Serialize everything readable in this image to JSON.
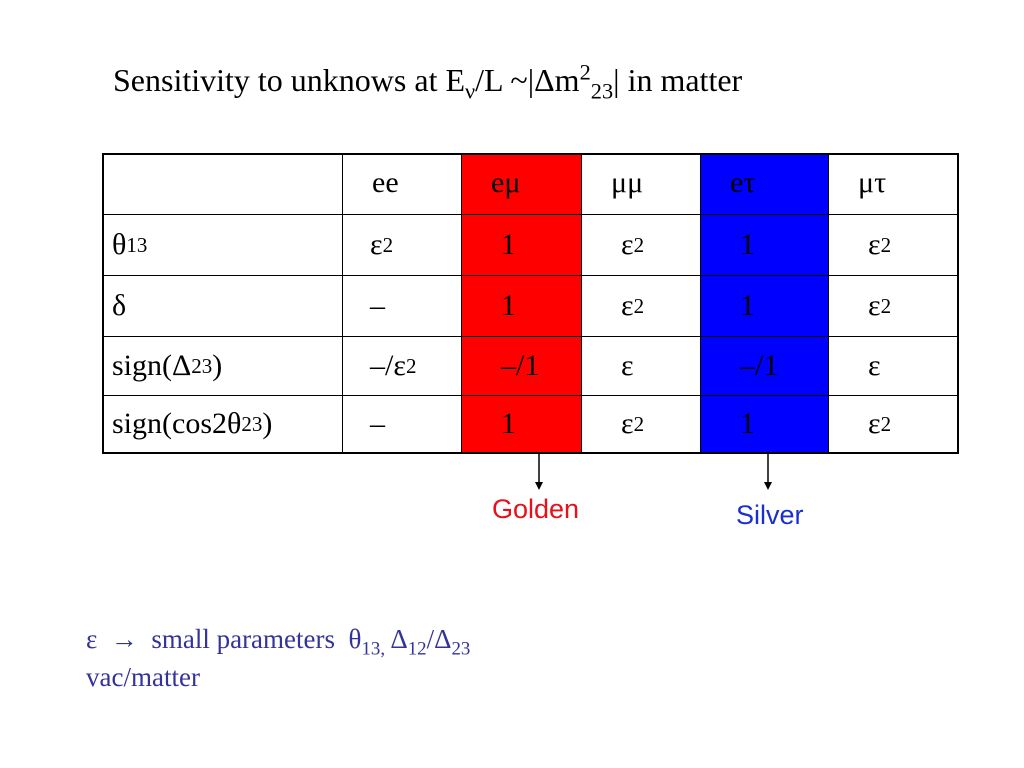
{
  "title": [
    "Sensitivity to unknows at E",
    {
      "sub": "ν"
    },
    "/L ~|Δm",
    {
      "sup": "2"
    },
    {
      "sub": "23"
    },
    "| in matter"
  ],
  "table": {
    "header": [
      {
        "label": "ee"
      },
      {
        "label": "eμ",
        "fill": "#ff0000"
      },
      {
        "label": "μμ"
      },
      {
        "label": "eτ",
        "fill": "#0000ff"
      },
      {
        "label": "μτ"
      }
    ],
    "rows": [
      [
        [
          "θ",
          {
            "sub": "13"
          }
        ],
        [
          "ε",
          {
            "sup": "2"
          }
        ],
        [
          "1"
        ],
        [
          "ε",
          {
            "sup": "2"
          }
        ],
        [
          "1"
        ],
        [
          "ε",
          {
            "sup": "2"
          }
        ]
      ],
      [
        [
          "δ"
        ],
        [
          "–"
        ],
        [
          "1"
        ],
        [
          "ε",
          {
            "sup": "2"
          }
        ],
        [
          "1"
        ],
        [
          "ε",
          {
            "sup": "2"
          }
        ]
      ],
      [
        [
          "sign(Δ",
          {
            "sub": "23"
          },
          ")"
        ],
        [
          "–/ε",
          {
            "sup": "2"
          }
        ],
        [
          "–/1"
        ],
        [
          "ε"
        ],
        [
          "–/1"
        ],
        [
          "ε"
        ]
      ],
      [
        [
          "sign(cos2θ",
          {
            "sub": "23"
          },
          ")"
        ],
        [
          "–"
        ],
        [
          "1"
        ],
        [
          "ε",
          {
            "sup": "2"
          }
        ],
        [
          "1"
        ],
        [
          "ε",
          {
            "sup": "2"
          }
        ]
      ]
    ]
  },
  "labels": [
    {
      "text": "Golden",
      "color": "#e8101a"
    },
    {
      "text": "Silver",
      "color": "#1a2fd0"
    }
  ],
  "footer": {
    "line1": [
      "ε  →  small parameters  θ",
      {
        "sub": "13,"
      },
      " Δ",
      {
        "sub": "12"
      },
      "/Δ",
      {
        "sub": "23"
      }
    ],
    "line2": "vac/matter"
  }
}
